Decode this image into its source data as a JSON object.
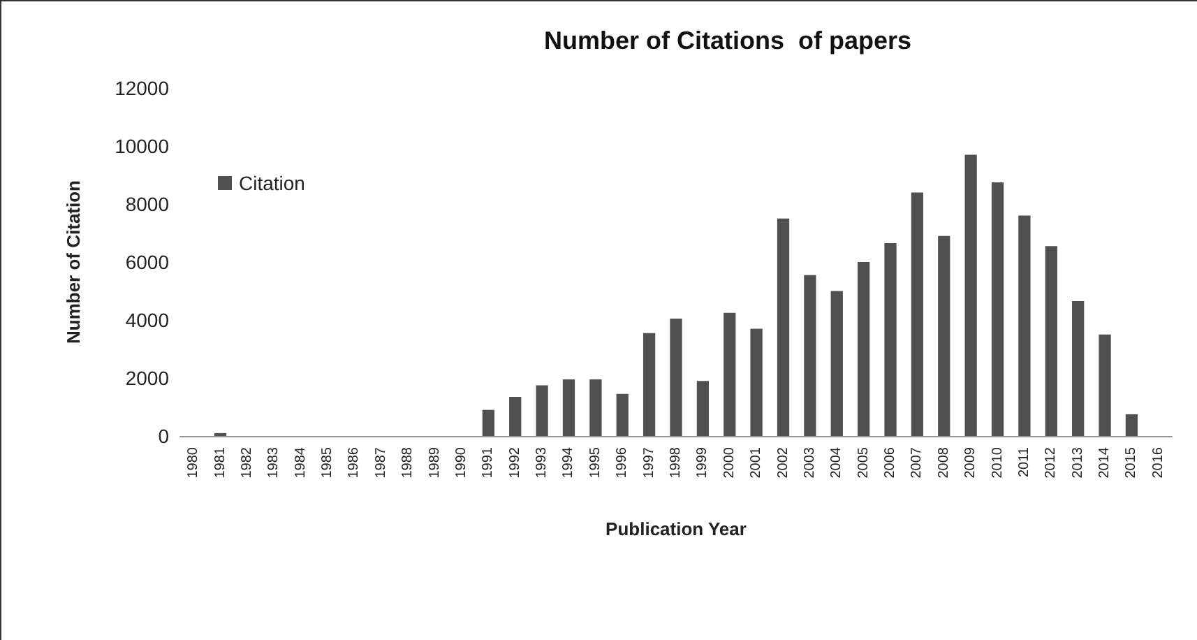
{
  "chart_data": {
    "type": "bar",
    "title": "Number of Citations  of papers",
    "xlabel": "Publication Year",
    "ylabel": "Number of Citation",
    "categories": [
      "1980",
      "1981",
      "1982",
      "1983",
      "1984",
      "1985",
      "1986",
      "1987",
      "1988",
      "1989",
      "1990",
      "1991",
      "1992",
      "1993",
      "1994",
      "1995",
      "1996",
      "1997",
      "1998",
      "1999",
      "2000",
      "2001",
      "2002",
      "2003",
      "2004",
      "2005",
      "2006",
      "2007",
      "2008",
      "2009",
      "2010",
      "2011",
      "2012",
      "2013",
      "2014",
      "2015",
      "2016"
    ],
    "series": [
      {
        "name": "Citation",
        "color": "#505050",
        "values": [
          0,
          100,
          0,
          0,
          0,
          0,
          0,
          0,
          0,
          0,
          0,
          900,
          1350,
          1750,
          1950,
          1950,
          1450,
          3550,
          4050,
          1900,
          4250,
          3700,
          7500,
          5550,
          5000,
          6000,
          6650,
          8400,
          6900,
          9700,
          8750,
          7600,
          6550,
          4650,
          3500,
          750,
          0
        ]
      }
    ],
    "ylim": [
      0,
      12000
    ],
    "yticks": [
      0,
      2000,
      4000,
      6000,
      8000,
      10000,
      12000
    ],
    "grid": false,
    "legend": "top left"
  }
}
